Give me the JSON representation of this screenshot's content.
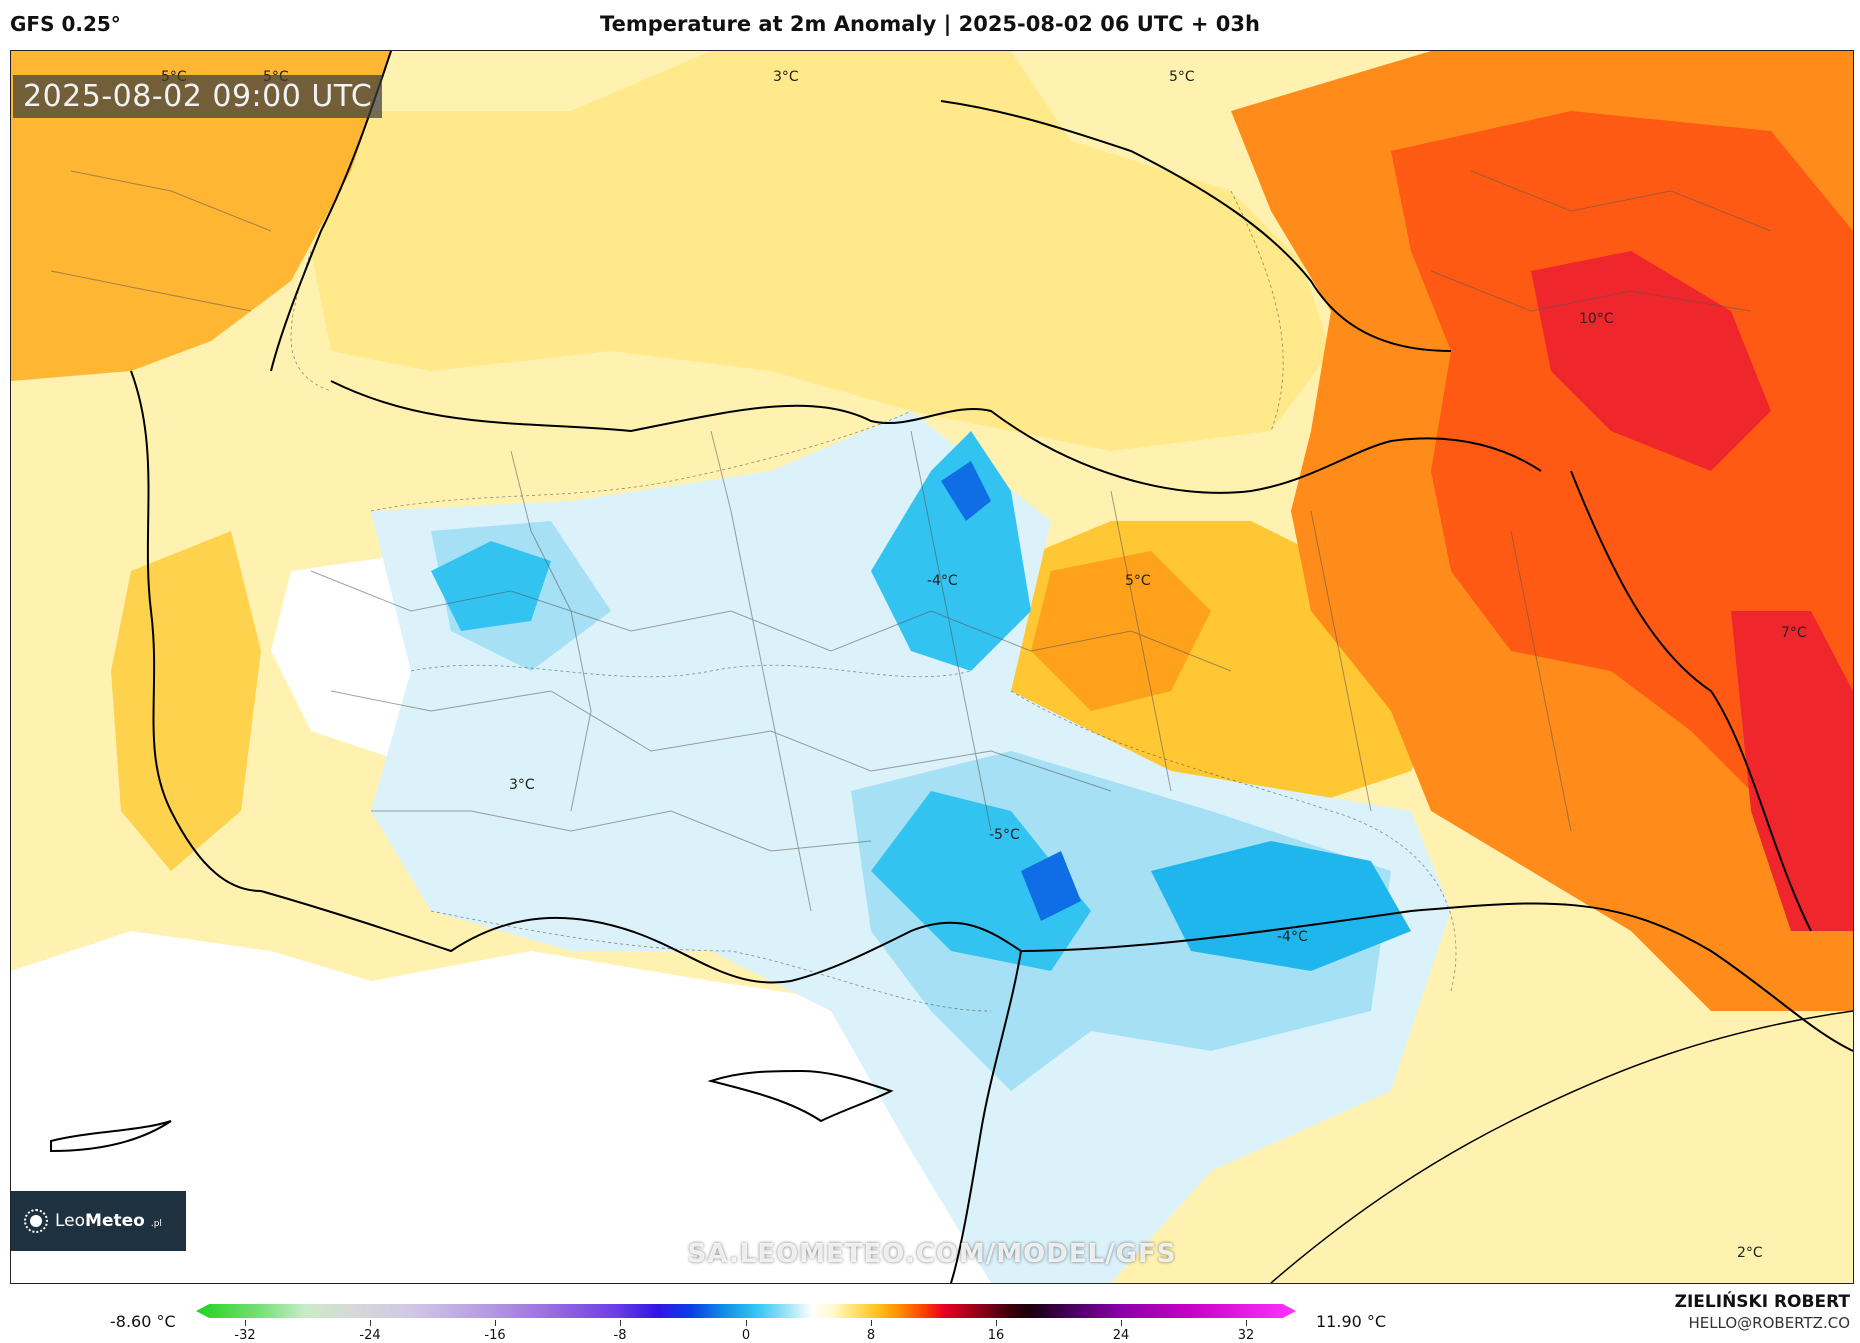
{
  "header": {
    "model": "GFS 0.25°",
    "title": "Temperature at 2m Anomaly | 2025-08-02 06 UTC + 03h"
  },
  "map": {
    "timestamp": "2025-08-02 09:00 UTC",
    "watermark": "SA.LEOMETEO.COM/MODEL/GFS",
    "logo": {
      "brand_regular": "Leo",
      "brand_bold": "Meteo",
      "suffix": ".pl"
    },
    "labels": [
      {
        "text": "5°C"
      },
      {
        "text": "5°C"
      },
      {
        "text": "3°C"
      },
      {
        "text": "5°C"
      },
      {
        "text": "10°C"
      },
      {
        "text": "-4°C"
      },
      {
        "text": "5°C"
      },
      {
        "text": "7°C"
      },
      {
        "text": "3°C"
      },
      {
        "text": "-5°C"
      },
      {
        "text": "-4°C"
      },
      {
        "text": "2°C"
      }
    ],
    "colors": {
      "pale_yellow": "#fff2b0",
      "yellow": "#ffe066",
      "gold": "#ffc733",
      "orange": "#ffa11a",
      "dark_orange": "#ff7a00",
      "red_orange": "#ff4a14",
      "red": "#e8142d",
      "pale_blue": "#dbf2fb",
      "light_blue": "#a5e0f5",
      "blue": "#33c3f0",
      "deep_blue": "#0f6ee6"
    }
  },
  "legend": {
    "min_label": "-8.60 °C",
    "max_label": "11.90 °C",
    "ticks": [
      "-32",
      "-24",
      "-16",
      "-8",
      "0",
      "8",
      "16",
      "24",
      "32"
    ]
  },
  "credits": {
    "name": "ZIELIŃSKI ROBERT",
    "email": "HELLO@ROBERTZ.CO"
  }
}
